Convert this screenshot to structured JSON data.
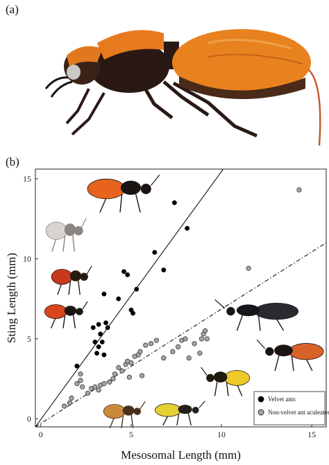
{
  "panel_a_label": "(a)",
  "panel_b_label": "(b)",
  "chart_data": {
    "type": "scatter",
    "xlabel": "Mesosomal Length (mm)",
    "ylabel": "Sting Length (mm)",
    "xlim": [
      -0.3,
      15.8
    ],
    "ylim": [
      -0.5,
      15.6
    ],
    "xticks": [
      0,
      5,
      10,
      15
    ],
    "yticks": [
      0,
      5,
      10,
      15
    ],
    "legend_position": "bottom-right",
    "series": [
      {
        "name": "Velvet ants",
        "marker": "filled-circle",
        "color": "#000000",
        "points": [
          [
            2.0,
            3.3
          ],
          [
            2.9,
            5.7
          ],
          [
            3.0,
            4.8
          ],
          [
            3.1,
            4.1
          ],
          [
            3.2,
            5.9
          ],
          [
            3.2,
            4.5
          ],
          [
            3.3,
            5.3
          ],
          [
            3.4,
            4.8
          ],
          [
            3.5,
            4.0
          ],
          [
            3.5,
            7.8
          ],
          [
            3.6,
            6.0
          ],
          [
            3.7,
            5.7
          ],
          [
            4.3,
            7.5
          ],
          [
            4.6,
            9.2
          ],
          [
            4.8,
            9.0
          ],
          [
            5.0,
            6.8
          ],
          [
            5.1,
            6.6
          ],
          [
            5.3,
            8.1
          ],
          [
            6.3,
            10.4
          ],
          [
            6.8,
            9.3
          ],
          [
            7.4,
            13.5
          ],
          [
            8.1,
            11.9
          ]
        ]
      },
      {
        "name": "Non-velvet ant aculeates",
        "marker": "grey-circle",
        "color": "#a6a6a6",
        "points": [
          [
            1.3,
            0.8
          ],
          [
            1.6,
            1.0
          ],
          [
            1.7,
            1.3
          ],
          [
            2.0,
            2.2
          ],
          [
            2.2,
            2.4
          ],
          [
            2.3,
            2.0
          ],
          [
            2.2,
            2.8
          ],
          [
            2.6,
            1.6
          ],
          [
            2.8,
            1.9
          ],
          [
            3.0,
            2.0
          ],
          [
            3.2,
            1.8
          ],
          [
            3.3,
            2.1
          ],
          [
            3.5,
            2.2
          ],
          [
            3.8,
            2.3
          ],
          [
            4.0,
            2.5
          ],
          [
            4.1,
            2.8
          ],
          [
            4.3,
            3.2
          ],
          [
            4.5,
            3.0
          ],
          [
            4.7,
            3.4
          ],
          [
            4.8,
            3.6
          ],
          [
            4.9,
            2.6
          ],
          [
            5.0,
            3.5
          ],
          [
            5.2,
            3.9
          ],
          [
            5.4,
            4.0
          ],
          [
            5.5,
            4.2
          ],
          [
            5.6,
            2.7
          ],
          [
            5.8,
            4.6
          ],
          [
            6.1,
            4.7
          ],
          [
            6.4,
            4.9
          ],
          [
            6.8,
            3.8
          ],
          [
            7.3,
            4.2
          ],
          [
            7.6,
            4.5
          ],
          [
            7.8,
            4.9
          ],
          [
            8.0,
            5.0
          ],
          [
            8.2,
            3.8
          ],
          [
            8.5,
            4.7
          ],
          [
            8.8,
            4.1
          ],
          [
            8.9,
            5.0
          ],
          [
            9.0,
            5.3
          ],
          [
            9.1,
            5.5
          ],
          [
            9.2,
            5.0
          ],
          [
            11.5,
            9.4
          ],
          [
            14.3,
            14.3
          ]
        ]
      }
    ],
    "fit_lines": [
      {
        "series": "Velvet ants",
        "style": "solid",
        "from": [
          -0.3,
          -0.5
        ],
        "to": [
          10.1,
          15.6
        ]
      },
      {
        "series": "Non-velvet ant aculeates",
        "style": "dash-dot",
        "from": [
          -0.3,
          -0.5
        ],
        "to": [
          15.8,
          11.0
        ]
      }
    ]
  },
  "insects": [
    {
      "name": "orange-velvet-ant-photo",
      "body": "#e8641e",
      "dark": "#1a1412"
    },
    {
      "name": "white-velvet-ant-photo",
      "body": "#d9d4cf",
      "dark": "#8a8580"
    },
    {
      "name": "spotted-velvet-ant-photo",
      "body": "#c8381c",
      "dark": "#2a1a14"
    },
    {
      "name": "red-black-velvet-ant-photo",
      "body": "#d9451e",
      "dark": "#1c1410"
    },
    {
      "name": "black-wasp-photo",
      "body": "#2a2a30",
      "dark": "#16161a"
    },
    {
      "name": "orange-abdomen-wasp-photo",
      "body": "#d9622a",
      "dark": "#1c1412"
    },
    {
      "name": "yellowjacket-photo",
      "body": "#f0c828",
      "dark": "#1e1a10"
    },
    {
      "name": "honeybee-photo",
      "body": "#c98a3a",
      "dark": "#4a3018"
    },
    {
      "name": "yellow-wasp-photo",
      "body": "#e6d030",
      "dark": "#222018"
    }
  ]
}
